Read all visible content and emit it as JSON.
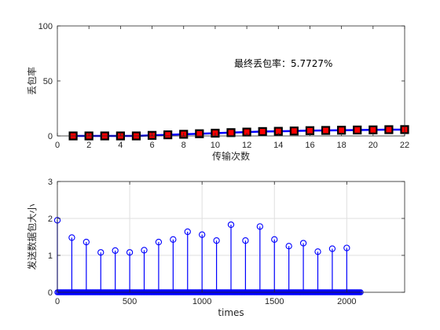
{
  "chart_data": [
    {
      "type": "line",
      "xlabel": "传输次数",
      "ylabel": "丢包率",
      "xlim": [
        0,
        22
      ],
      "ylim": [
        0,
        100
      ],
      "xticks": [
        0,
        2,
        4,
        6,
        8,
        10,
        12,
        14,
        16,
        18,
        20,
        22
      ],
      "yticks": [
        0,
        50,
        100
      ],
      "grid": false,
      "annotation": "最终丢包率：5.7727%",
      "series": [
        {
          "x": [
            1,
            2,
            3,
            4,
            5,
            6,
            7,
            8,
            9,
            10,
            11,
            12,
            13,
            14,
            15,
            16,
            17,
            18,
            19,
            20,
            21,
            22
          ],
          "values": [
            0,
            0,
            0,
            0,
            0,
            0.5,
            1.0,
            1.5,
            2.0,
            2.5,
            3.0,
            3.5,
            4.0,
            4.2,
            4.5,
            4.8,
            5.0,
            5.2,
            5.4,
            5.5,
            5.7,
            5.7727
          ],
          "color": "#0000ff",
          "marker_face": "#ff0000",
          "marker_edge": "#000000"
        }
      ]
    },
    {
      "type": "stem",
      "xlabel": "times",
      "ylabel": "发送数据包大小",
      "xlim": [
        0,
        2400
      ],
      "ylim": [
        0,
        3
      ],
      "xticks": [
        0,
        500,
        1000,
        1500,
        2000
      ],
      "yticks": [
        0,
        1,
        2,
        3
      ],
      "grid": true,
      "series": [
        {
          "x": [
            0,
            100,
            200,
            300,
            400,
            500,
            600,
            700,
            800,
            900,
            1000,
            1100,
            1200,
            1300,
            1400,
            1500,
            1600,
            1700,
            1800,
            1900,
            2000
          ],
          "values": [
            1.95,
            1.48,
            1.36,
            1.08,
            1.13,
            1.08,
            1.14,
            1.36,
            1.43,
            1.64,
            1.56,
            1.4,
            1.83,
            1.4,
            1.78,
            1.43,
            1.25,
            1.33,
            1.1,
            1.18,
            1.2
          ],
          "zero_range": [
            0,
            2100
          ],
          "color": "#0000ff"
        }
      ]
    }
  ]
}
